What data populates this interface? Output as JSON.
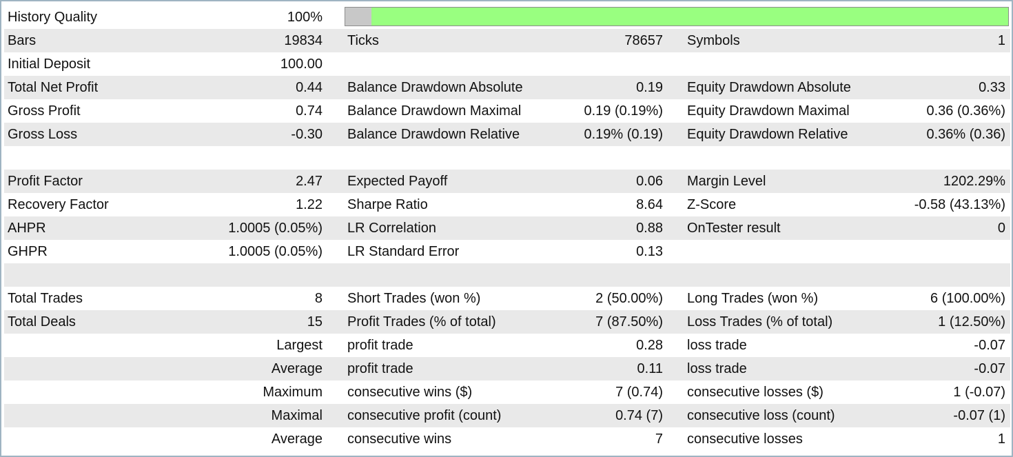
{
  "history": {
    "label": "History Quality",
    "value": "100%",
    "bar_fraction": 1.0,
    "bar_color": "#99ff80",
    "bar_track_color": "#c8c8c8"
  },
  "rows": {
    "bars": {
      "l1": "Bars",
      "v1": "19834",
      "l2": "Ticks",
      "v2": "78657",
      "l3": "Symbols",
      "v3": "1"
    },
    "deposit": {
      "l1": "Initial Deposit",
      "v1": "100.00"
    },
    "netprofit": {
      "l1": "Total Net Profit",
      "v1": "0.44",
      "l2": "Balance Drawdown Absolute",
      "v2": "0.19",
      "l3": "Equity Drawdown Absolute",
      "v3": "0.33"
    },
    "grossprofit": {
      "l1": "Gross Profit",
      "v1": "0.74",
      "l2": "Balance Drawdown Maximal",
      "v2": "0.19 (0.19%)",
      "l3": "Equity Drawdown Maximal",
      "v3": "0.36 (0.36%)"
    },
    "grossloss": {
      "l1": "Gross Loss",
      "v1": "-0.30",
      "l2": "Balance Drawdown Relative",
      "v2": "0.19% (0.19)",
      "l3": "Equity Drawdown Relative",
      "v3": "0.36% (0.36)"
    },
    "profitfactor": {
      "l1": "Profit Factor",
      "v1": "2.47",
      "l2": "Expected Payoff",
      "v2": "0.06",
      "l3": "Margin Level",
      "v3": "1202.29%"
    },
    "recovery": {
      "l1": "Recovery Factor",
      "v1": "1.22",
      "l2": "Sharpe Ratio",
      "v2": "8.64",
      "l3": "Z-Score",
      "v3": "-0.58 (43.13%)"
    },
    "ahpr": {
      "l1": "AHPR",
      "v1": "1.0005 (0.05%)",
      "l2": "LR Correlation",
      "v2": "0.88",
      "l3": "OnTester result",
      "v3": "0"
    },
    "ghpr": {
      "l1": "GHPR",
      "v1": "1.0005 (0.05%)",
      "l2": "LR Standard Error",
      "v2": "0.13"
    },
    "trades": {
      "l1": "Total Trades",
      "v1": "8",
      "l2": "Short Trades (won %)",
      "v2": "2 (50.00%)",
      "l3": "Long Trades (won %)",
      "v3": "6 (100.00%)"
    },
    "deals": {
      "l1": "Total Deals",
      "v1": "15",
      "l2": "Profit Trades (% of total)",
      "v2": "7 (87.50%)",
      "l3": "Loss Trades (% of total)",
      "v3": "1 (12.50%)"
    },
    "largest": {
      "v1": "Largest",
      "l2": "profit trade",
      "v2": "0.28",
      "l3": "loss trade",
      "v3": "-0.07"
    },
    "average1": {
      "v1": "Average",
      "l2": "profit trade",
      "v2": "0.11",
      "l3": "loss trade",
      "v3": "-0.07"
    },
    "maximum": {
      "v1": "Maximum",
      "l2": "consecutive wins ($)",
      "v2": "7 (0.74)",
      "l3": "consecutive losses ($)",
      "v3": "1 (-0.07)"
    },
    "maximal": {
      "v1": "Maximal",
      "l2": "consecutive profit (count)",
      "v2": "0.74 (7)",
      "l3": "consecutive loss (count)",
      "v3": "-0.07 (1)"
    },
    "average2": {
      "v1": "Average",
      "l2": "consecutive wins",
      "v2": "7",
      "l3": "consecutive losses",
      "v3": "1"
    }
  }
}
